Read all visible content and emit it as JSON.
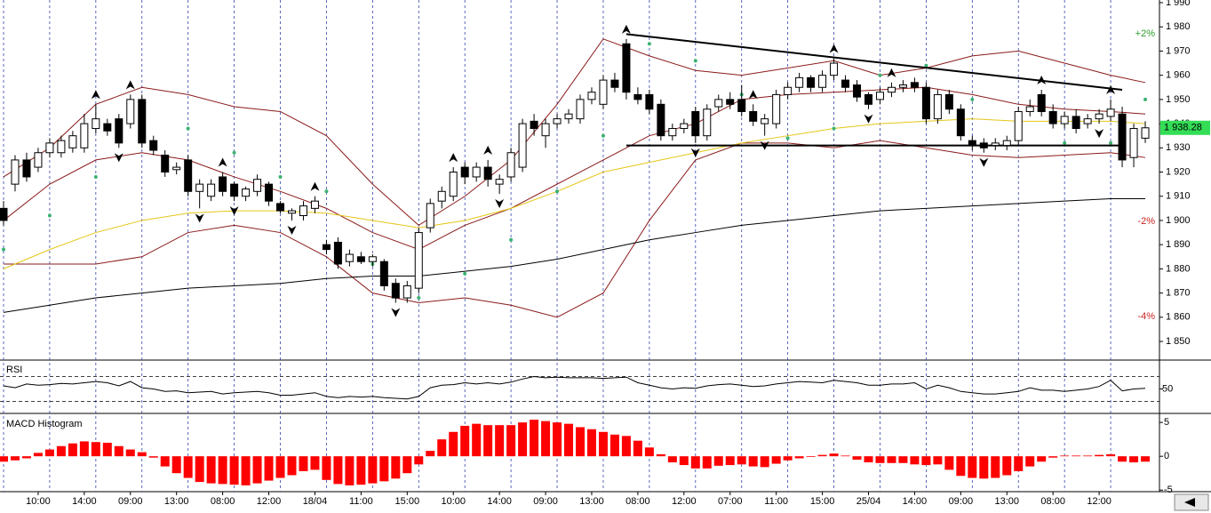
{
  "chart_data": {
    "type": "candlestick",
    "ylim": [
      1842.3,
      1991.1
    ],
    "yticks": [
      {
        "value": 1850,
        "label": "1 850"
      },
      {
        "value": 1860,
        "label": "1 860"
      },
      {
        "value": 1870,
        "label": "1 870"
      },
      {
        "value": 1880,
        "label": "1 880"
      },
      {
        "value": 1890,
        "label": "1 890"
      },
      {
        "value": 1900,
        "label": "1 900"
      },
      {
        "value": 1910,
        "label": "1 910"
      },
      {
        "value": 1920,
        "label": "1 920"
      },
      {
        "value": 1930,
        "label": "1 930"
      },
      {
        "value": 1940,
        "label": "1 940"
      },
      {
        "value": 1950,
        "label": "1 950"
      },
      {
        "value": 1960,
        "label": "1 960"
      },
      {
        "value": 1970,
        "label": "1 970"
      },
      {
        "value": 1980,
        "label": "1 980"
      },
      {
        "value": 1990,
        "label": "1 990"
      }
    ],
    "xticks": [
      {
        "value": 3,
        "label": "10:00"
      },
      {
        "value": 7,
        "label": "14:00"
      },
      {
        "value": 11,
        "label": "09:00"
      },
      {
        "value": 15,
        "label": "13:00"
      },
      {
        "value": 19,
        "label": "08:00"
      },
      {
        "value": 23,
        "label": "12:00"
      },
      {
        "value": 27,
        "label": "18/04"
      },
      {
        "value": 31,
        "label": "11:00"
      },
      {
        "value": 35,
        "label": "15:00"
      },
      {
        "value": 39,
        "label": "10:00"
      },
      {
        "value": 43,
        "label": "14:00"
      },
      {
        "value": 47,
        "label": "09:00"
      },
      {
        "value": 51,
        "label": "13:00"
      },
      {
        "value": 55,
        "label": "08:00"
      },
      {
        "value": 59,
        "label": "12:00"
      },
      {
        "value": 63,
        "label": "07:00"
      },
      {
        "value": 67,
        "label": "11:00"
      },
      {
        "value": 71,
        "label": "15:00"
      },
      {
        "value": 75,
        "label": "25/04"
      },
      {
        "value": 79,
        "label": "14:00"
      },
      {
        "value": 83,
        "label": "09:00"
      },
      {
        "value": 87,
        "label": "13:00"
      },
      {
        "value": 91,
        "label": "08:00"
      },
      {
        "value": 95,
        "label": "12:00"
      }
    ],
    "xgrid": [
      0,
      4,
      8,
      12,
      16,
      20,
      24,
      28,
      32,
      36,
      40,
      44,
      48,
      52,
      56,
      60,
      64,
      68,
      72,
      76,
      80,
      84,
      88,
      92,
      96
    ],
    "grid": "x",
    "candles": [
      [
        1905,
        1908,
        1898,
        1900
      ],
      [
        1915,
        1927,
        1912,
        1925
      ],
      [
        1925,
        1928,
        1916,
        1918
      ],
      [
        1922,
        1930,
        1920,
        1928
      ],
      [
        1928,
        1934,
        1926,
        1932
      ],
      [
        1928,
        1935,
        1926,
        1933
      ],
      [
        1930,
        1937,
        1928,
        1935
      ],
      [
        1930,
        1944,
        1928,
        1940
      ],
      [
        1938,
        1948,
        1936,
        1942
      ],
      [
        1940,
        1942,
        1935,
        1937
      ],
      [
        1942,
        1944,
        1930,
        1932
      ],
      [
        1940,
        1952,
        1938,
        1950
      ],
      [
        1950,
        1952,
        1930,
        1932
      ],
      [
        1933,
        1935,
        1927,
        1929
      ],
      [
        1927,
        1929,
        1918,
        1920
      ],
      [
        1921,
        1924,
        1919,
        1922
      ],
      [
        1925,
        1927,
        1910,
        1912
      ],
      [
        1912,
        1917,
        1905,
        1915
      ],
      [
        1910,
        1917,
        1908,
        1915
      ],
      [
        1918,
        1920,
        1910,
        1912
      ],
      [
        1915,
        1916,
        1908,
        1910
      ],
      [
        1910,
        1914,
        1908,
        1913
      ],
      [
        1912,
        1919,
        1910,
        1917
      ],
      [
        1915,
        1916,
        1906,
        1908
      ],
      [
        1907,
        1908,
        1903,
        1904
      ],
      [
        1903,
        1905,
        1900,
        1904
      ],
      [
        1902,
        1908,
        1900,
        1906
      ],
      [
        1905,
        1910,
        1903,
        1908
      ],
      [
        1890,
        1892,
        1886,
        1888
      ],
      [
        1891,
        1893,
        1880,
        1882
      ],
      [
        1883,
        1888,
        1881,
        1886
      ],
      [
        1885,
        1887,
        1882,
        1883
      ],
      [
        1883,
        1886,
        1881,
        1885
      ],
      [
        1883,
        1884,
        1871,
        1873
      ],
      [
        1874,
        1876,
        1866,
        1868
      ],
      [
        1868,
        1875,
        1866,
        1873
      ],
      [
        1872,
        1897,
        1870,
        1895
      ],
      [
        1897,
        1909,
        1895,
        1907
      ],
      [
        1908,
        1914,
        1905,
        1912
      ],
      [
        1910,
        1922,
        1908,
        1920
      ],
      [
        1922,
        1924,
        1915,
        1918
      ],
      [
        1918,
        1924,
        1916,
        1922
      ],
      [
        1922,
        1925,
        1914,
        1917
      ],
      [
        1915,
        1919,
        1911,
        1917
      ],
      [
        1918,
        1930,
        1916,
        1928
      ],
      [
        1922,
        1942,
        1920,
        1940
      ],
      [
        1941,
        1944,
        1935,
        1938
      ],
      [
        1935,
        1942,
        1930,
        1940
      ],
      [
        1940,
        1944,
        1938,
        1942
      ],
      [
        1942,
        1946,
        1940,
        1944
      ],
      [
        1942,
        1952,
        1940,
        1950
      ],
      [
        1950,
        1955,
        1948,
        1953
      ],
      [
        1948,
        1960,
        1946,
        1958
      ],
      [
        1958,
        1961,
        1953,
        1955
      ],
      [
        1973,
        1975,
        1950,
        1953
      ],
      [
        1952,
        1955,
        1948,
        1950
      ],
      [
        1952,
        1954,
        1944,
        1946
      ],
      [
        1948,
        1950,
        1933,
        1935
      ],
      [
        1935,
        1940,
        1933,
        1938
      ],
      [
        1938,
        1942,
        1936,
        1940
      ],
      [
        1945,
        1947,
        1932,
        1935
      ],
      [
        1935,
        1948,
        1933,
        1946
      ],
      [
        1947,
        1952,
        1945,
        1950
      ],
      [
        1950,
        1953,
        1946,
        1948
      ],
      [
        1950,
        1956,
        1943,
        1945
      ],
      [
        1945,
        1948,
        1939,
        1941
      ],
      [
        1940,
        1944,
        1935,
        1942
      ],
      [
        1940,
        1954,
        1938,
        1952
      ],
      [
        1952,
        1957,
        1950,
        1955
      ],
      [
        1955,
        1961,
        1953,
        1959
      ],
      [
        1959,
        1960,
        1953,
        1955
      ],
      [
        1955,
        1962,
        1953,
        1960
      ],
      [
        1960,
        1967,
        1958,
        1965
      ],
      [
        1958,
        1960,
        1953,
        1955
      ],
      [
        1956,
        1958,
        1949,
        1951
      ],
      [
        1952,
        1953,
        1946,
        1948
      ],
      [
        1950,
        1955,
        1948,
        1953
      ],
      [
        1953,
        1957,
        1951,
        1955
      ],
      [
        1955,
        1958,
        1953,
        1956
      ],
      [
        1957,
        1959,
        1953,
        1955
      ],
      [
        1955,
        1957,
        1940,
        1942
      ],
      [
        1942,
        1954,
        1940,
        1952
      ],
      [
        1952,
        1954,
        1944,
        1946
      ],
      [
        1946,
        1948,
        1933,
        1935
      ],
      [
        1933,
        1935,
        1929,
        1931
      ],
      [
        1932,
        1934,
        1928,
        1930
      ],
      [
        1931,
        1934,
        1929,
        1932
      ],
      [
        1931,
        1935,
        1929,
        1933
      ],
      [
        1933,
        1947,
        1931,
        1945
      ],
      [
        1945,
        1950,
        1943,
        1947
      ],
      [
        1952,
        1954,
        1943,
        1945
      ],
      [
        1945,
        1948,
        1938,
        1940
      ],
      [
        1940,
        1945,
        1938,
        1943
      ],
      [
        1943,
        1946,
        1936,
        1938
      ],
      [
        1940,
        1944,
        1938,
        1942
      ],
      [
        1942,
        1946,
        1940,
        1944
      ],
      [
        1943,
        1950,
        1941,
        1946
      ],
      [
        1944,
        1947,
        1922,
        1925
      ],
      [
        1926,
        1940,
        1922,
        1938
      ],
      [
        1934,
        1941,
        1932,
        1938.28
      ]
    ],
    "line_x": [
      0,
      4,
      8,
      12,
      16,
      20,
      24,
      28,
      32,
      36,
      40,
      44,
      48,
      52,
      56,
      60,
      64,
      68,
      72,
      76,
      80,
      84,
      88,
      92,
      96,
      99
    ],
    "lines": [
      {
        "color": "#8b1a1a",
        "values": [
          1918,
          1930,
          1948,
          1955,
          1952,
          1947,
          1945,
          1935,
          1915,
          1898,
          1910,
          1925,
          1948,
          1975,
          1968,
          1962,
          1960,
          1963,
          1966,
          1960,
          1963,
          1968,
          1970,
          1965,
          1960,
          1957
        ]
      },
      {
        "color": "#8b1a1a",
        "values": [
          1900,
          1915,
          1925,
          1928,
          1925,
          1918,
          1912,
          1905,
          1895,
          1888,
          1898,
          1905,
          1915,
          1925,
          1935,
          1940,
          1950,
          1952,
          1953,
          1954,
          1955,
          1952,
          1948,
          1946,
          1945,
          1944
        ]
      },
      {
        "color": "#8b1a1a",
        "values": [
          1882,
          1882,
          1882,
          1885,
          1895,
          1898,
          1895,
          1885,
          1870,
          1866,
          1868,
          1865,
          1860,
          1870,
          1900,
          1925,
          1932,
          1932,
          1930,
          1933,
          1930,
          1927,
          1926,
          1927,
          1928,
          1926
        ]
      },
      {
        "color": "#e6c619",
        "values": [
          1880,
          1888,
          1895,
          1900,
          1903,
          1904,
          1904,
          1903,
          1900,
          1897,
          1900,
          1905,
          1912,
          1920,
          1924,
          1928,
          1932,
          1935,
          1938,
          1940,
          1941,
          1942,
          1941,
          1941,
          1941,
          1940
        ]
      },
      {
        "color": "#000000",
        "values": [
          1862,
          1865,
          1868,
          1870,
          1872,
          1873,
          1874,
          1876,
          1877,
          1877,
          1879,
          1881,
          1884,
          1888,
          1892,
          1895,
          1898,
          1900,
          1902,
          1904,
          1905,
          1906,
          1907,
          1908,
          1909,
          1909
        ]
      }
    ],
    "sar": {
      "color": "#3cb371",
      "values": [
        1888,
        1902,
        1918,
        1948,
        1938,
        1928,
        1918,
        1912,
        1882,
        1868,
        1878,
        1892,
        1912,
        1935,
        1973,
        1966,
        1952,
        1934,
        1938,
        1960,
        1964,
        1950,
        1942,
        1932,
        1932,
        1950
      ]
    },
    "trendlines": [
      {
        "from": [
          54,
          1977
        ],
        "to": [
          97,
          1954
        ]
      },
      {
        "from": [
          54,
          1931
        ],
        "to": [
          97,
          1931
        ]
      }
    ],
    "up_signals": [
      8,
      11,
      19,
      27,
      39,
      42,
      54,
      65,
      72,
      77,
      90,
      96
    ],
    "down_signals": [
      10,
      17,
      20,
      25,
      34,
      43,
      60,
      66,
      75,
      85,
      95
    ],
    "pct_levels": [
      {
        "value": 1977.1,
        "label": "+2%",
        "color": "#2e9e2e"
      },
      {
        "value": 1899.6,
        "label": "-2%",
        "color": "#cc2222"
      },
      {
        "value": 1860.2,
        "label": "-4%",
        "color": "#cc2222"
      }
    ],
    "last_price": {
      "value": 1938.28,
      "label": "1 938.28",
      "color": "#33dd55"
    },
    "rsi": {
      "title": "RSI",
      "ylim": [
        15,
        95
      ],
      "yticks": [
        50
      ],
      "levels": [
        70,
        30
      ],
      "values": [
        55,
        52,
        58,
        56,
        57,
        59,
        58,
        60,
        62,
        60,
        55,
        62,
        52,
        50,
        46,
        47,
        44,
        45,
        46,
        42,
        44,
        45,
        46,
        44,
        40,
        40,
        42,
        44,
        38,
        36,
        38,
        37,
        38,
        36,
        35,
        34,
        38,
        52,
        56,
        57,
        60,
        58,
        60,
        58,
        61,
        66,
        70,
        68,
        69,
        68,
        68,
        68,
        67,
        68,
        69,
        60,
        56,
        52,
        50,
        52,
        51,
        55,
        57,
        58,
        56,
        54,
        55,
        58,
        60,
        62,
        61,
        60,
        64,
        62,
        60,
        56,
        56,
        58,
        58,
        60,
        50,
        56,
        52,
        46,
        44,
        42,
        42,
        44,
        46,
        52,
        48,
        48,
        46,
        48,
        50,
        54,
        64,
        47,
        50,
        51
      ]
    },
    "macd": {
      "title": "MACD Histogram",
      "color": "#ff0000",
      "ylim": [
        -5.1,
        6.2
      ],
      "yticks": [
        5,
        0,
        -5
      ],
      "values": [
        -0.8,
        -0.6,
        -0.3,
        0.5,
        1,
        1.5,
        1.9,
        2.2,
        2.1,
        2.0,
        1.5,
        1.0,
        0.6,
        -0.2,
        -1.5,
        -2.5,
        -3.2,
        -3.8,
        -4.0,
        -4.1,
        -4.2,
        -4.3,
        -4.0,
        -3.6,
        -3.2,
        -2.8,
        -2.2,
        -2.0,
        -3.5,
        -4.1,
        -4.3,
        -4.2,
        -4.0,
        -3.7,
        -3.3,
        -2.5,
        -1.2,
        0.8,
        2.5,
        3.6,
        4.5,
        4.8,
        4.6,
        4.6,
        4.6,
        5.0,
        5.4,
        5.2,
        5.0,
        4.8,
        4.3,
        4.0,
        3.6,
        3.2,
        3.0,
        2.3,
        1.3,
        0.3,
        -0.9,
        -1.3,
        -1.8,
        -1.8,
        -1.4,
        -1.3,
        -1.2,
        -1.5,
        -1.6,
        -1.1,
        -0.6,
        -0.3,
        -0.1,
        0.2,
        0.4,
        0.1,
        -0.5,
        -0.9,
        -1.0,
        -1.0,
        -1.0,
        -1.2,
        -1.3,
        -1.2,
        -2.0,
        -2.9,
        -3.2,
        -3.3,
        -3.2,
        -2.8,
        -2.2,
        -1.5,
        -0.8,
        -0.2,
        0.1,
        0.1,
        0.1,
        0.2,
        0.3,
        -0.8,
        -0.9,
        -0.8
      ]
    }
  }
}
